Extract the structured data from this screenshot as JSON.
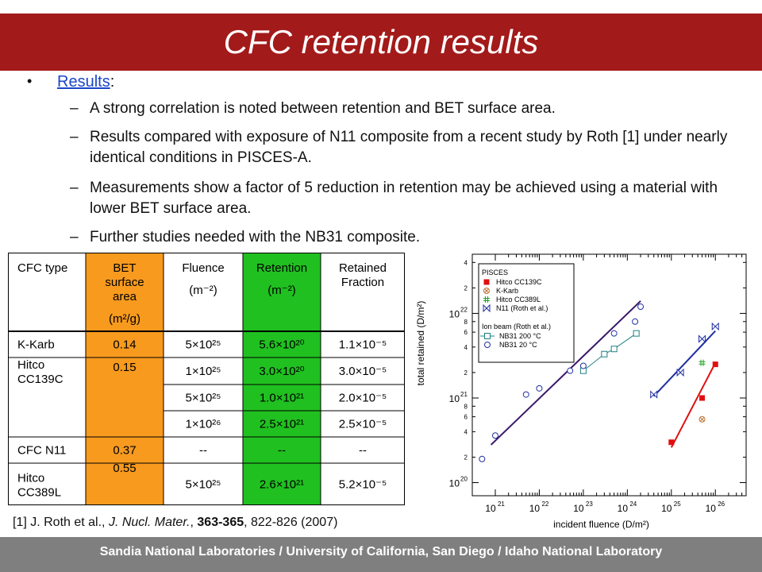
{
  "slide": {
    "title": "CFC retention results",
    "footer": "Sandia National Laboratories / University of California, San Diego / Idaho National Laboratory"
  },
  "results": {
    "bullet": "•",
    "heading": "Results",
    "heading_suffix": ":",
    "items": [
      "A strong correlation is noted between retention and BET surface area.",
      "Results compared with exposure of N11 composite from a recent study by Roth [1] under nearly identical conditions in PISCES-A.",
      "Measurements show a factor of 5 reduction in retention may be achieved using a material with lower BET surface area.",
      "Further studies needed with the NB31 composite."
    ]
  },
  "table": {
    "headers": {
      "cfc_type": "CFC type",
      "bet": [
        "BET",
        "surface",
        "area",
        "(m²/g)"
      ],
      "fluence": [
        "Fluence",
        "(m⁻²)"
      ],
      "retention": [
        "Retention",
        "(m⁻²)"
      ],
      "fraction": [
        "Retained",
        "Fraction"
      ]
    },
    "rows": [
      {
        "type": [
          "K-Karb"
        ],
        "bet": "0.14",
        "fluence": "5×10²⁵",
        "retention": "5.6×10²⁰",
        "fraction": "1.1×10⁻⁵"
      },
      {
        "type": [
          "Hitco",
          "CC139C"
        ],
        "bet": "0.15",
        "fluence": "1×10²⁵",
        "retention": "3.0×10²⁰",
        "fraction": "3.0×10⁻⁵"
      },
      {
        "type": [],
        "bet": "",
        "fluence": "5×10²⁵",
        "retention": "1.0×10²¹",
        "fraction": "2.0×10⁻⁵"
      },
      {
        "type": [],
        "bet": "",
        "fluence": "1×10²⁶",
        "retention": "2.5×10²¹",
        "fraction": "2.5×10⁻⁵"
      },
      {
        "type": [
          "CFC N11"
        ],
        "bet": "0.37",
        "fluence": "--",
        "retention": "--",
        "fraction": "--"
      },
      {
        "type": [
          "Hitco",
          "CC389L"
        ],
        "bet": "0.55",
        "fluence": "5×10²⁵",
        "retention": "2.6×10²¹",
        "fraction": "5.2×10⁻⁵"
      }
    ]
  },
  "reference": {
    "prefix": "[1] J. Roth et al., ",
    "journal": "J. Nucl. Mater.",
    "sep": ", ",
    "volume": "363-365",
    "rest": ", 822-826 (2007)"
  },
  "colors": {
    "title_bar": "#a31a1a",
    "bet_column": "#f79a1e",
    "retention_column": "#20c020",
    "link": "#1b45c8",
    "footer_bar": "#7f7f7f",
    "hitco139": "#e01010",
    "kkarb": "#c07030",
    "hitco389": "#20a020",
    "n11": "#2030a0",
    "nb31": "#208080"
  },
  "chart_data": {
    "type": "scatter",
    "title": "",
    "xlabel": "incident fluence (D/m²)",
    "ylabel": "total retained (D/m²)",
    "xscale": "log",
    "yscale": "log",
    "xlim": [
      3e+20,
      5e+26
    ],
    "ylim": [
      7e+19,
      5e+22
    ],
    "grid": false,
    "legend_placement": "top-left",
    "legend_groups": [
      "PISCES",
      "Ion beam (Roth et al.)"
    ],
    "x_ticks": [
      {
        "value": 1e+21,
        "base": "10",
        "exp": "21"
      },
      {
        "value": 1e+22,
        "base": "10",
        "exp": "22"
      },
      {
        "value": 1e+23,
        "base": "10",
        "exp": "23"
      },
      {
        "value": 1e+24,
        "base": "10",
        "exp": "24"
      },
      {
        "value": 1e+25,
        "base": "10",
        "exp": "25"
      },
      {
        "value": 1e+26,
        "base": "10",
        "exp": "26"
      }
    ],
    "y_major_ticks": [
      {
        "value": 1e+20,
        "base": "10",
        "exp": "20"
      },
      {
        "value": 1e+21,
        "base": "10",
        "exp": "21"
      },
      {
        "value": 1e+22,
        "base": "10",
        "exp": "22"
      }
    ],
    "y_minor_labels": [
      {
        "value": 2e+20,
        "label": "2"
      },
      {
        "value": 4e+20,
        "label": "4"
      },
      {
        "value": 6e+20,
        "label": "6"
      },
      {
        "value": 8e+20,
        "label": "8"
      },
      {
        "value": 2e+21,
        "label": "2"
      },
      {
        "value": 4e+21,
        "label": "4"
      },
      {
        "value": 6e+21,
        "label": "6"
      },
      {
        "value": 8e+21,
        "label": "8"
      },
      {
        "value": 2e+22,
        "label": "2"
      },
      {
        "value": 4e+22,
        "label": "4"
      }
    ],
    "series": [
      {
        "name": "Hitco CC139C",
        "marker": "square-filled",
        "color": "#e01010",
        "group": "PISCES",
        "x": [
          1e+25,
          5e+25,
          1e+26
        ],
        "y": [
          3e+20,
          1e+21,
          2.5e+21
        ],
        "fit": [
          [
            1e+25,
            2.6e+20
          ],
          [
            1e+26,
            2.6e+21
          ]
        ]
      },
      {
        "name": "K-Karb",
        "marker": "circle-cross",
        "color": "#c07030",
        "group": "PISCES",
        "x": [
          5e+25
        ],
        "y": [
          5.6e+20
        ]
      },
      {
        "name": "Hitco CC389L",
        "marker": "hash",
        "color": "#20a020",
        "group": "PISCES",
        "x": [
          5e+25
        ],
        "y": [
          2.6e+21
        ]
      },
      {
        "name": "N11 (Roth et al.)",
        "marker": "bowtie",
        "color": "#2030a0",
        "group": "PISCES",
        "x": [
          4e+24,
          1.6e+25,
          5e+25,
          1e+26
        ],
        "y": [
          1.1e+21,
          2e+21,
          5e+21,
          7e+21
        ],
        "fit": [
          [
            4e+24,
            1.05e+21
          ],
          [
            1e+26,
            6.2e+21
          ]
        ]
      },
      {
        "name": "NB31 200 °C",
        "marker": "square-open",
        "color": "#208080",
        "group": "Ion beam (Roth et al.)",
        "x": [
          1e+23,
          3e+23,
          5e+23,
          1.6e+24
        ],
        "y": [
          2.1e+21,
          3.3e+21,
          3.8e+21,
          5.8e+21
        ]
      },
      {
        "name": "NB31 20 °C",
        "marker": "circle-open",
        "color": "#2030a0",
        "group": "Ion beam (Roth et al.)",
        "x": [
          5e+20,
          1e+21,
          5e+21,
          1e+22,
          5e+22,
          1e+23,
          5e+23,
          1.5e+24,
          2e+24
        ],
        "y": [
          1.9e+20,
          3.6e+20,
          1.1e+21,
          1.3e+21,
          2.1e+21,
          2.4e+21,
          5.8e+21,
          8e+21,
          1.2e+22
        ]
      }
    ],
    "lines": [
      {
        "name": "PISCES trend",
        "color": "#3a1a6a",
        "points": [
          [
            8e+20,
            2.8e+20
          ],
          [
            2e+24,
            1.4e+22
          ]
        ]
      }
    ]
  }
}
